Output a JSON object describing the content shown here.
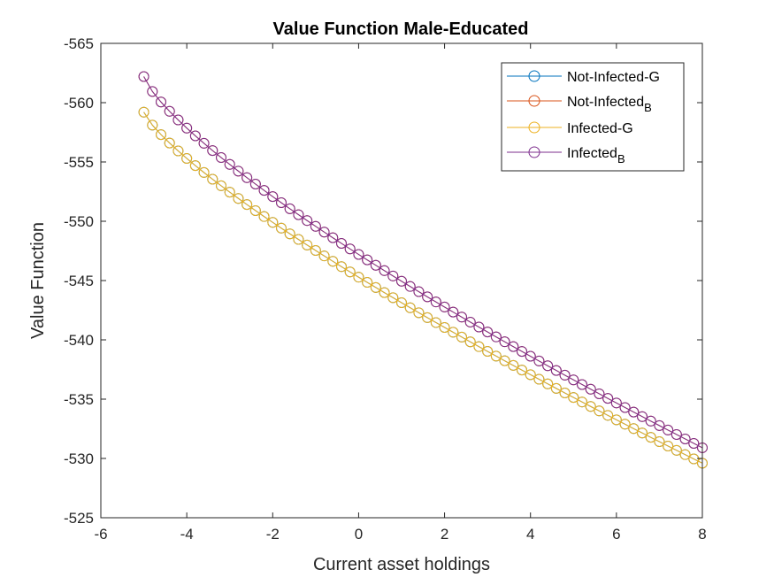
{
  "chart_data": {
    "type": "line",
    "title": "Value Function Male-Educated",
    "xlabel": "Current asset holdings",
    "ylabel": "Value Function",
    "xlim": [
      -6,
      8
    ],
    "ylim": [
      -565,
      -525
    ],
    "xticks": [
      -6,
      -4,
      -2,
      0,
      2,
      4,
      6,
      8
    ],
    "yticks": [
      -525,
      -530,
      -535,
      -540,
      -545,
      -550,
      -555,
      -560,
      -565
    ],
    "x_start": -5,
    "x_end": 8,
    "x_step": 0.2,
    "grid": false,
    "marker": "circle",
    "legend_position": "top-right",
    "series": [
      {
        "name": "Not-Infected-G",
        "color": "#0072BD",
        "y_at_x_start": -559.2,
        "y_at_x_end": -529.6,
        "curvature": 0.79
      },
      {
        "name": "Not-Infected_B",
        "color": "#D95319",
        "y_at_x_start": -562.2,
        "y_at_x_end": -530.9,
        "curvature": 0.77
      },
      {
        "name": "Infected-G",
        "color": "#EDB120",
        "y_at_x_start": -559.2,
        "y_at_x_end": -529.6,
        "curvature": 0.79
      },
      {
        "name": "Infected_B",
        "color": "#7E2F8E",
        "y_at_x_start": -562.2,
        "y_at_x_end": -530.9,
        "curvature": 0.77
      }
    ],
    "legend": [
      {
        "base": "Not-Infected-G",
        "sub": ""
      },
      {
        "base": "Not-Infected",
        "sub": "B"
      },
      {
        "base": "Infected-G",
        "sub": ""
      },
      {
        "base": "Infected",
        "sub": "B"
      }
    ]
  }
}
